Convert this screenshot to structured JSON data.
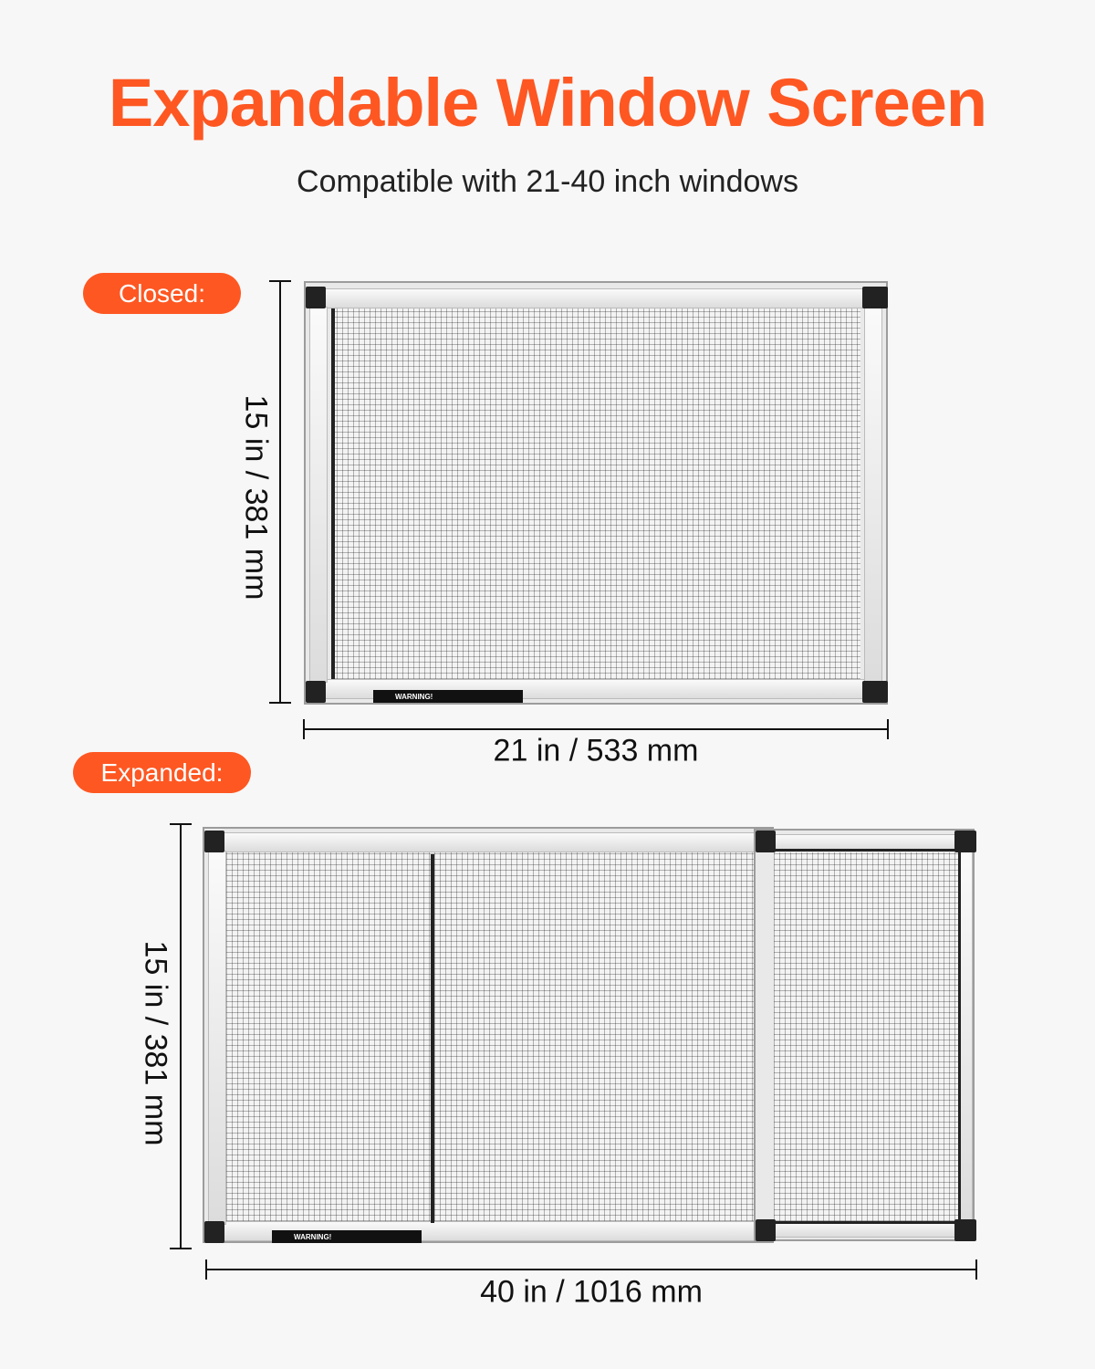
{
  "header": {
    "title": "Expandable Window Screen",
    "subtitle": "Compatible with 21-40 inch windows"
  },
  "closed": {
    "badge": "Closed:",
    "height_label": "15 in / 381 mm",
    "width_label": "21 in / 533 mm",
    "warning_label": "WARNING!"
  },
  "expanded": {
    "badge": "Expanded:",
    "height_label": "15 in / 381 mm",
    "width_label": "40 in / 1016 mm",
    "warning_label": "WARNING!"
  },
  "colors": {
    "accent": "#fe5722",
    "background": "#f7f7f7"
  }
}
